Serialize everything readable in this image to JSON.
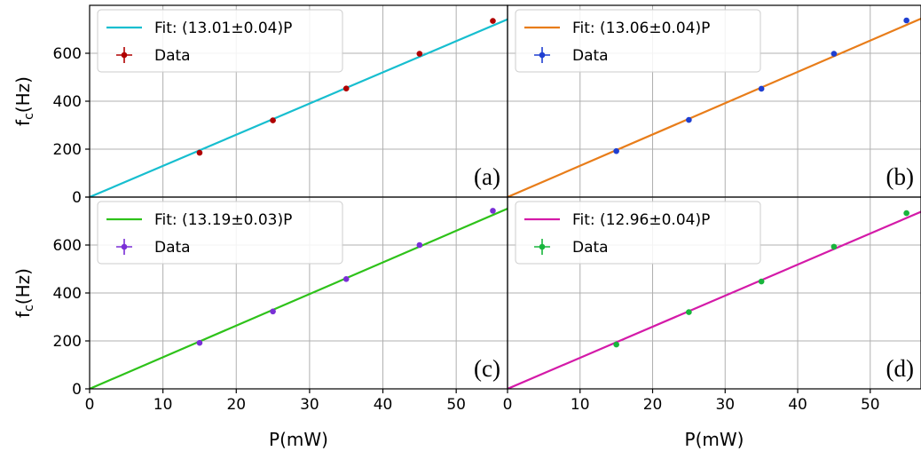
{
  "chart_data": [
    {
      "type": "scatter",
      "panel_label": "(a)",
      "xlabel": "",
      "ylabel": "f_c(Hz)",
      "xlim": [
        0,
        57
      ],
      "ylim": [
        0,
        800
      ],
      "xticks": [
        "0",
        "10",
        "20",
        "30",
        "40",
        "50"
      ],
      "yticks": [
        "0",
        "200",
        "400",
        "600"
      ],
      "grid": true,
      "legend_position": "top-left",
      "fit": {
        "label": "Fit: (13.01±0.04)P",
        "slope": 13.01,
        "color": "#17becf"
      },
      "series": [
        {
          "name": "Data",
          "color": "#b00000",
          "x": [
            15,
            25,
            35,
            45,
            55
          ],
          "y": [
            185,
            320,
            453,
            598,
            735
          ]
        }
      ]
    },
    {
      "type": "scatter",
      "panel_label": "(b)",
      "xlabel": "",
      "ylabel": "",
      "xlim": [
        0,
        57
      ],
      "ylim": [
        0,
        800
      ],
      "xticks": [],
      "yticks": [],
      "grid": true,
      "legend_position": "top-left",
      "fit": {
        "label": "Fit: (13.06±0.04)P",
        "slope": 13.06,
        "color": "#e87d1a"
      },
      "series": [
        {
          "name": "Data",
          "color": "#1f3fd1",
          "x": [
            15,
            25,
            35,
            45,
            55
          ],
          "y": [
            192,
            322,
            452,
            598,
            737
          ]
        }
      ]
    },
    {
      "type": "scatter",
      "panel_label": "(c)",
      "xlabel": "P(mW)",
      "ylabel": "f_c(Hz)",
      "xlim": [
        0,
        57
      ],
      "ylim": [
        0,
        800
      ],
      "xticks": [
        "0",
        "10",
        "20",
        "30",
        "40",
        "50"
      ],
      "yticks": [
        "0",
        "200",
        "400",
        "600"
      ],
      "grid": true,
      "legend_position": "top-left",
      "fit": {
        "label": "Fit: (13.19±0.03)P",
        "slope": 13.19,
        "color": "#2ec21a"
      },
      "series": [
        {
          "name": "Data",
          "color": "#7a2fd6",
          "x": [
            15,
            25,
            35,
            45,
            55
          ],
          "y": [
            192,
            323,
            458,
            600,
            743
          ]
        }
      ]
    },
    {
      "type": "scatter",
      "panel_label": "(d)",
      "xlabel": "P(mW)",
      "ylabel": "",
      "xlim": [
        0,
        57
      ],
      "ylim": [
        0,
        800
      ],
      "xticks": [
        "0",
        "10",
        "20",
        "30",
        "40",
        "50"
      ],
      "yticks": [],
      "grid": true,
      "legend_position": "top-left",
      "fit": {
        "label": "Fit: (12.96±0.04)P",
        "slope": 12.96,
        "color": "#d41aa8"
      },
      "series": [
        {
          "name": "Data",
          "color": "#18b53c",
          "x": [
            15,
            25,
            35,
            45,
            55
          ],
          "y": [
            185,
            320,
            448,
            593,
            733
          ]
        }
      ]
    }
  ]
}
